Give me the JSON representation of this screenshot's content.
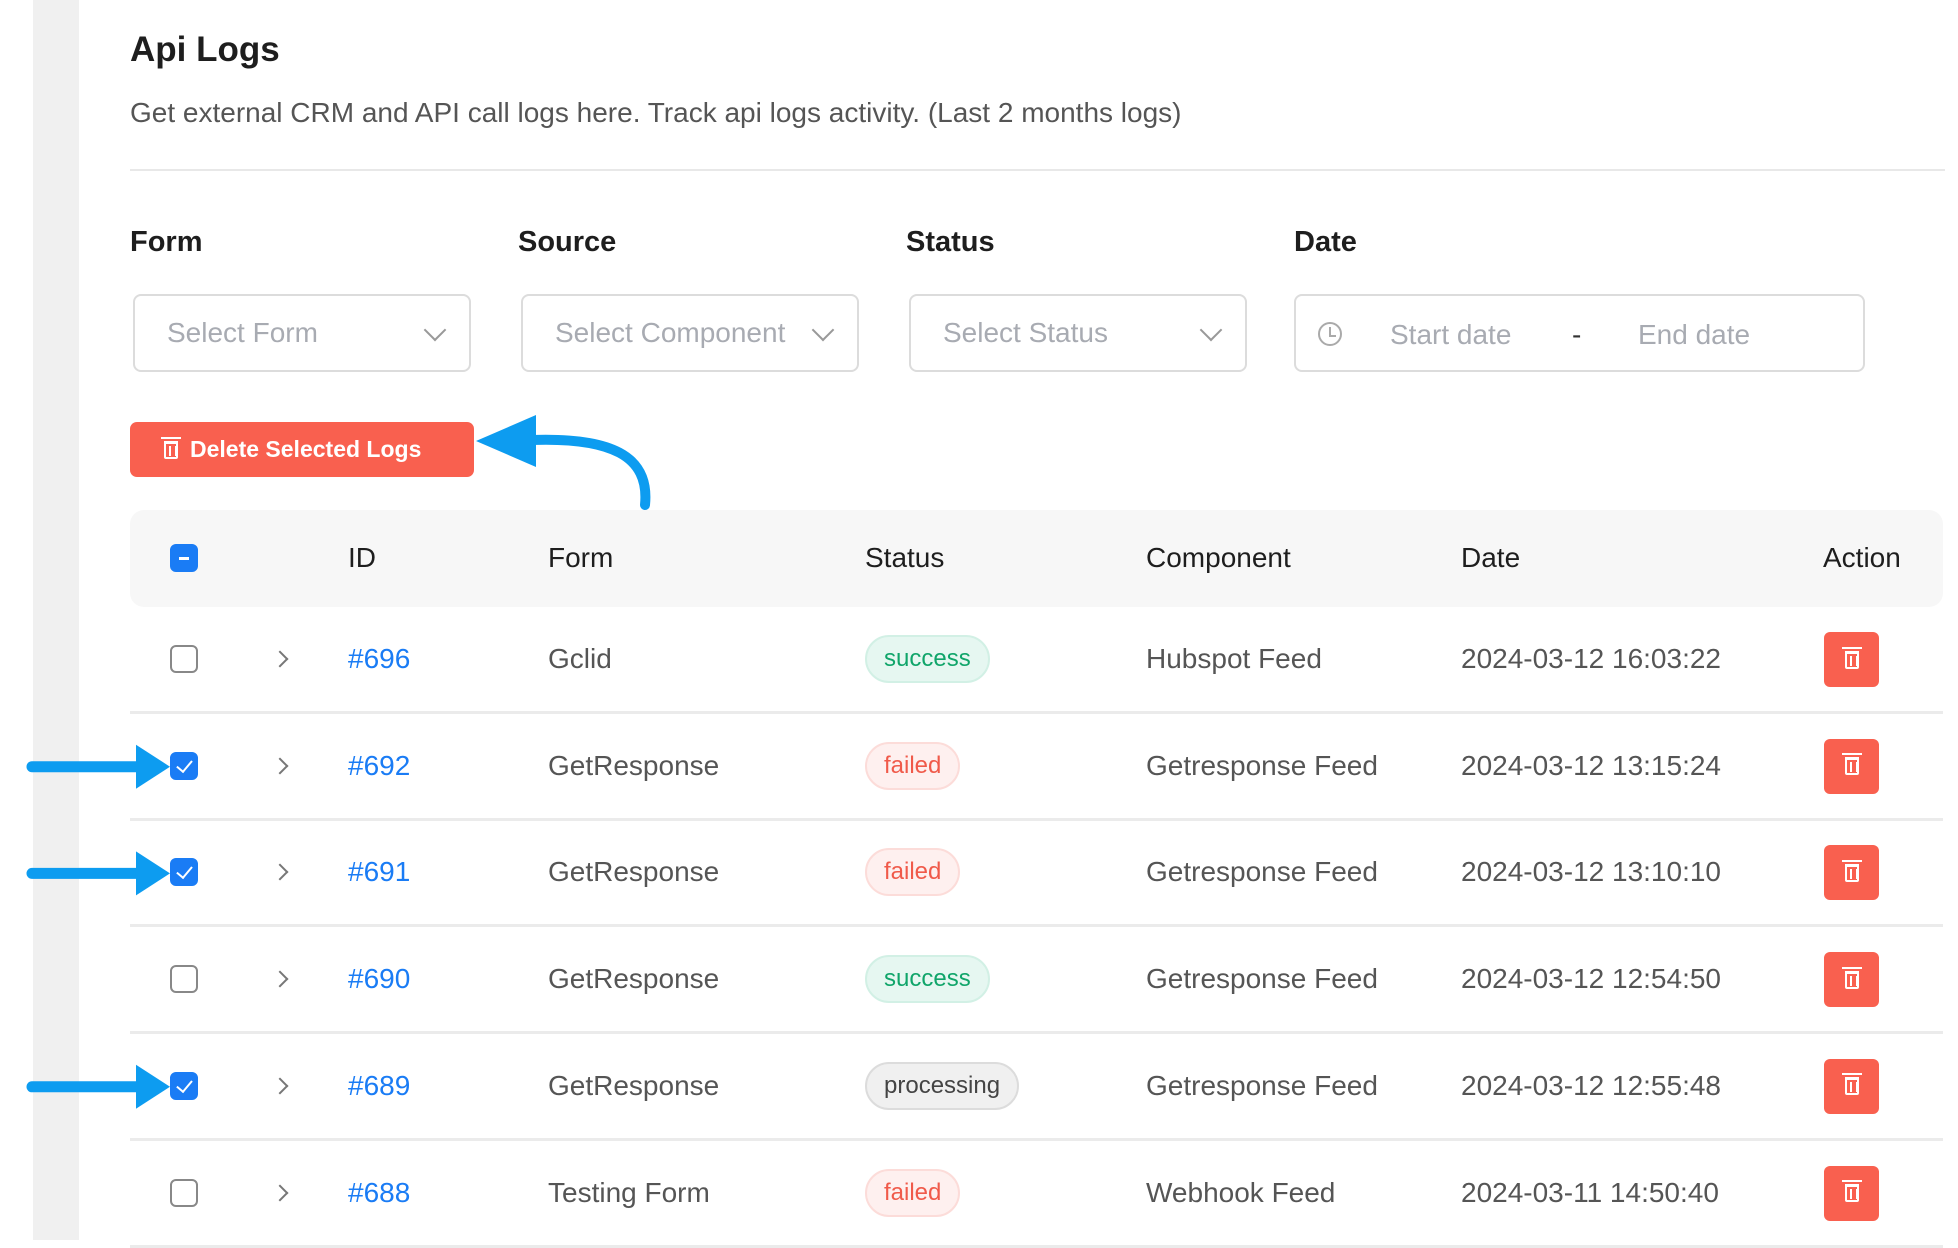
{
  "page": {
    "title": "Api Logs",
    "subtitle": "Get external CRM and API call logs here. Track api logs activity. (Last 2 months logs)"
  },
  "filters": {
    "form": {
      "label": "Form",
      "placeholder": "Select Form"
    },
    "source": {
      "label": "Source",
      "placeholder": "Select Component"
    },
    "status": {
      "label": "Status",
      "placeholder": "Select Status"
    },
    "date": {
      "label": "Date",
      "start_placeholder": "Start date",
      "separator": "-",
      "end_placeholder": "End date"
    }
  },
  "delete_button": "Delete Selected Logs",
  "table": {
    "headers": {
      "id": "ID",
      "form": "Form",
      "status": "Status",
      "component": "Component",
      "date": "Date",
      "action": "Action"
    },
    "rows": [
      {
        "checked": false,
        "id": "#696",
        "form": "Gclid",
        "status": "success",
        "component": "Hubspot Feed",
        "date": "2024-03-12 16:03:22"
      },
      {
        "checked": true,
        "id": "#692",
        "form": "GetResponse",
        "status": "failed",
        "component": "Getresponse Feed",
        "date": "2024-03-12 13:15:24"
      },
      {
        "checked": true,
        "id": "#691",
        "form": "GetResponse",
        "status": "failed",
        "component": "Getresponse Feed",
        "date": "2024-03-12 13:10:10"
      },
      {
        "checked": false,
        "id": "#690",
        "form": "GetResponse",
        "status": "success",
        "component": "Getresponse Feed",
        "date": "2024-03-12 12:54:50"
      },
      {
        "checked": true,
        "id": "#689",
        "form": "GetResponse",
        "status": "processing",
        "component": "Getresponse Feed",
        "date": "2024-03-12 12:55:48"
      },
      {
        "checked": false,
        "id": "#688",
        "form": "Testing Form",
        "status": "failed",
        "component": "Webhook Feed",
        "date": "2024-03-11 14:50:40"
      }
    ]
  },
  "colors": {
    "accent": "#1a7cf5",
    "danger": "#f9604f",
    "annotation_arrow": "#0d9cf0"
  }
}
